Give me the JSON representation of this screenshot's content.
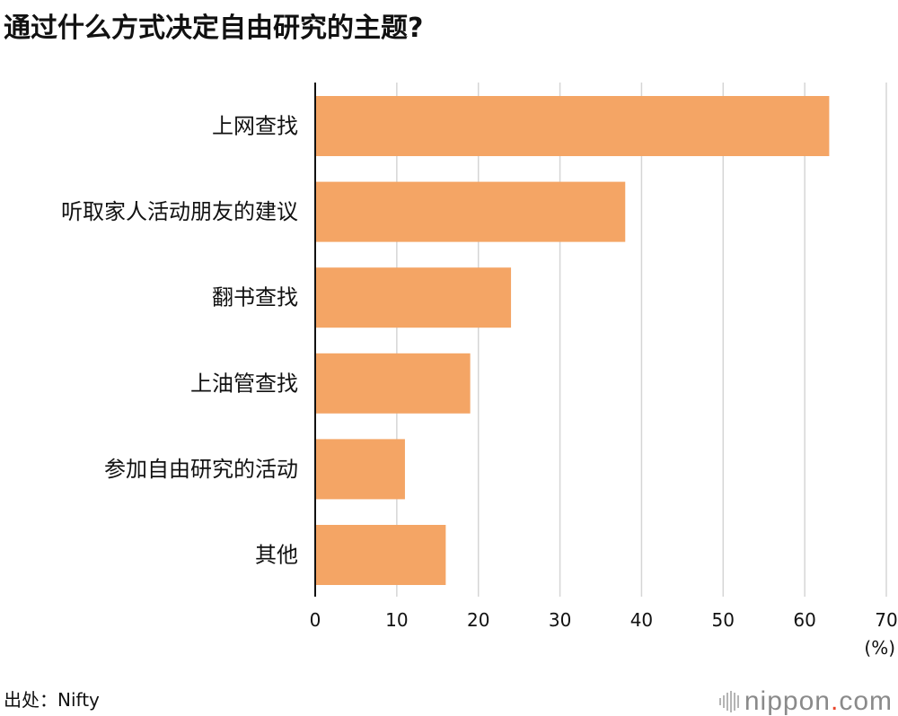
{
  "title": "通过什么方式决定自由研究的主题?",
  "source": "出处：Nifty",
  "brand": {
    "name": "nippon",
    "dot": ".",
    "tld": "com"
  },
  "colors": {
    "bar": "#f4a565",
    "grid": "#d5d5d5",
    "axis": "#111111",
    "brand_dot": "#e8462b"
  },
  "chart_data": {
    "type": "bar",
    "orientation": "horizontal",
    "categories": [
      "上网查找",
      "听取家人活动朋友的建议",
      "翻书查找",
      "上油管查找",
      "参加自由研究的活动",
      "其他"
    ],
    "values": [
      63,
      38,
      24,
      19,
      11,
      16
    ],
    "xlim": [
      0,
      70
    ],
    "xticks": [
      0,
      10,
      20,
      30,
      40,
      50,
      60,
      70
    ],
    "unit_label": "(%)",
    "grid": true
  }
}
